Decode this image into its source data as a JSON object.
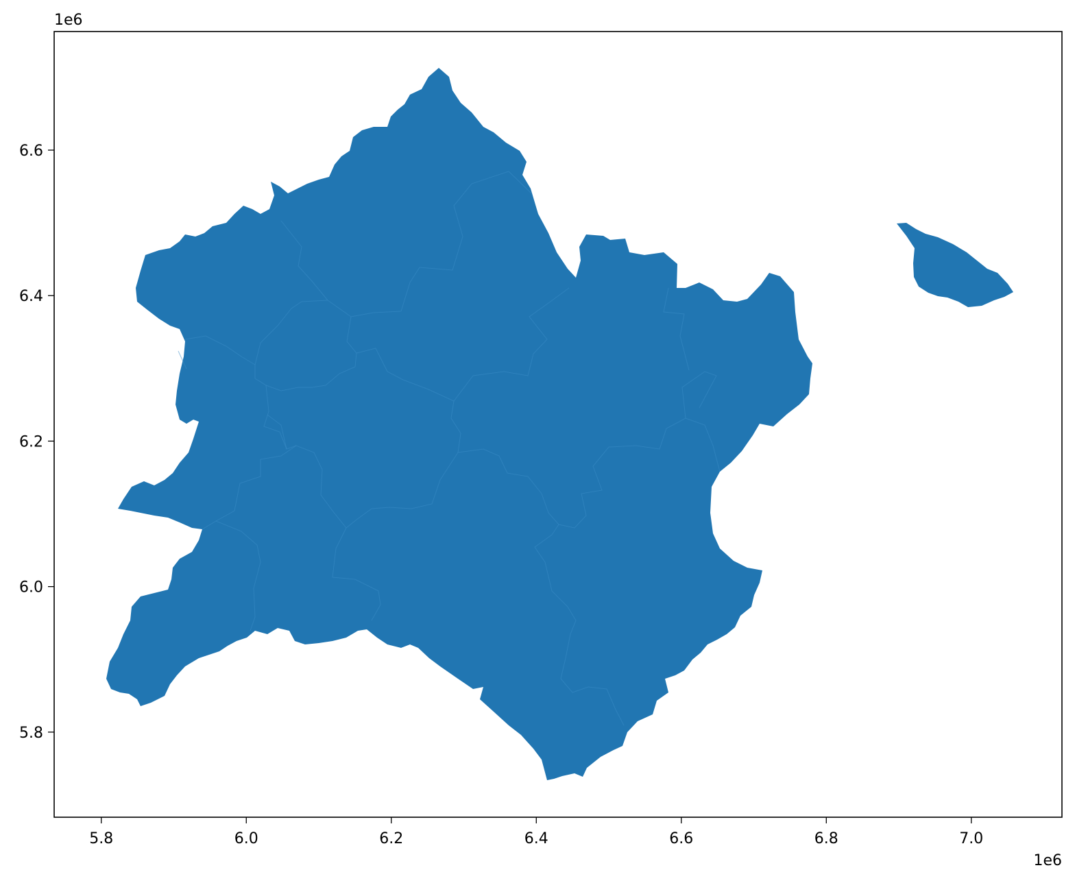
{
  "chart_data": {
    "type": "map",
    "fill_color": "#2176b2",
    "border_color": "#2a7bba",
    "x_axis": {
      "range": [
        5.735,
        7.125
      ],
      "ticks": [
        5.8,
        6.0,
        6.2,
        6.4,
        6.6,
        6.8,
        7.0
      ],
      "tick_labels": [
        "5.8",
        "6.0",
        "6.2",
        "6.4",
        "6.6",
        "6.8",
        "7.0"
      ],
      "offset_label": "1e6"
    },
    "y_axis": {
      "range": [
        5.683,
        6.763
      ],
      "ticks": [
        5.8,
        6.0,
        6.2,
        6.4,
        6.6
      ],
      "tick_labels": [
        "5.8",
        "6.0",
        "6.2",
        "6.4",
        "6.6"
      ],
      "offset_label": "1e6"
    },
    "grid": false,
    "legend": "none",
    "regions": [
      {
        "id": "mainland",
        "region_count": 18
      },
      {
        "id": "island"
      }
    ]
  }
}
